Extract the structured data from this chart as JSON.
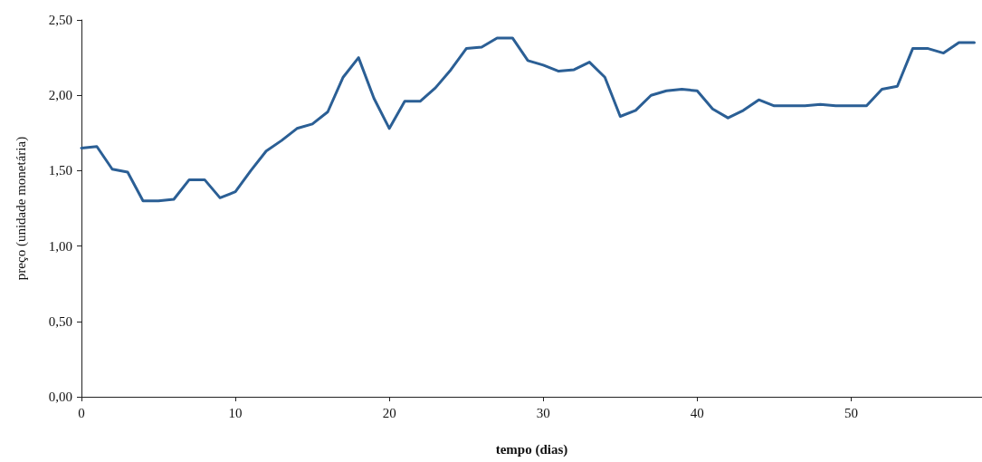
{
  "chart_data": {
    "type": "line",
    "xlabel": "tempo (dias)",
    "ylabel": "preço (unidade monetária)",
    "x": [
      0,
      1,
      2,
      3,
      4,
      5,
      6,
      7,
      8,
      9,
      10,
      11,
      12,
      13,
      14,
      15,
      16,
      17,
      18,
      19,
      20,
      21,
      22,
      23,
      24,
      25,
      26,
      27,
      28,
      29,
      30,
      31,
      32,
      33,
      34,
      35,
      36,
      37,
      38,
      39,
      40,
      41,
      42,
      43,
      44,
      45,
      46,
      47,
      48,
      49,
      50,
      51,
      52,
      53,
      54,
      55,
      56,
      57,
      58
    ],
    "series": [
      {
        "color": "#2b5f95",
        "values": [
          1.65,
          1.66,
          1.51,
          1.49,
          1.3,
          1.3,
          1.31,
          1.44,
          1.44,
          1.32,
          1.36,
          1.5,
          1.63,
          1.7,
          1.78,
          1.81,
          1.89,
          2.12,
          2.25,
          1.98,
          1.78,
          1.96,
          1.96,
          2.05,
          2.17,
          2.31,
          2.32,
          2.38,
          2.38,
          2.23,
          2.2,
          2.16,
          2.17,
          2.22,
          2.12,
          1.86,
          1.9,
          2.0,
          2.03,
          2.04,
          2.03,
          1.91,
          1.85,
          1.9,
          1.97,
          1.93,
          1.93,
          1.93,
          1.94,
          1.93,
          1.93,
          1.93,
          2.04,
          2.06,
          2.31,
          2.31,
          2.28,
          2.35,
          2.35
        ]
      }
    ],
    "xlim": [
      0,
      58.5
    ],
    "xticks": [
      0,
      10,
      20,
      30,
      40,
      50
    ],
    "ylim": [
      0,
      2.5
    ],
    "yticks": [
      {
        "value": 0,
        "label": "0,00"
      },
      {
        "value": 0.5,
        "label": "0,50"
      },
      {
        "value": 1,
        "label": "1,00"
      },
      {
        "value": 1.5,
        "label": "1,50"
      },
      {
        "value": 2,
        "label": "2,00"
      },
      {
        "value": 2.5,
        "label": "2,50"
      }
    ],
    "grid": false,
    "marker": "none",
    "line_style": "solid"
  }
}
